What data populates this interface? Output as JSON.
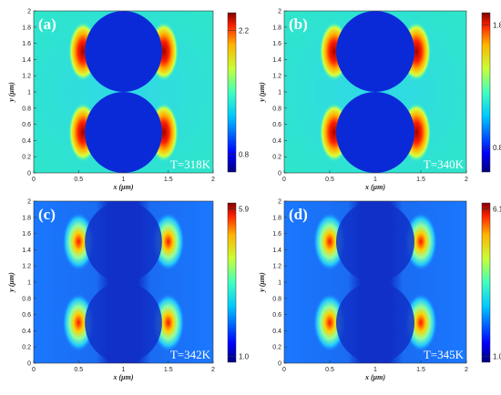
{
  "chart_data": [
    {
      "type": "heatmap",
      "panel_label": "(a)",
      "annotation": "T=318K",
      "xlabel": "x (μm)",
      "ylabel": "y (μm)",
      "xlim": [
        0,
        2
      ],
      "ylim": [
        0,
        2
      ],
      "xticks": [
        "0",
        "0.5",
        "1",
        "1.5",
        "2"
      ],
      "yticks": [
        "0",
        "0.2",
        "0.4",
        "0.6",
        "0.8",
        "1",
        "1.2",
        "1.4",
        "1.6",
        "1.8",
        "2"
      ],
      "colorbar_ticks": [
        "2.2",
        "0.8"
      ],
      "colorbar_range": [
        0.6,
        2.4
      ],
      "spheres": [
        {
          "cx": 1.0,
          "cy": 0.5,
          "r": 0.5
        },
        {
          "cx": 1.0,
          "cy": 1.5,
          "r": 0.5
        }
      ],
      "hot_zones": [
        {
          "cx": 0.55,
          "cy": 1.5
        },
        {
          "cx": 1.45,
          "cy": 1.5
        },
        {
          "cx": 0.55,
          "cy": 0.5
        },
        {
          "cx": 1.45,
          "cy": 0.5
        }
      ]
    },
    {
      "type": "heatmap",
      "panel_label": "(b)",
      "annotation": "T=340K",
      "xlabel": "x (μm)",
      "ylabel": "y (μm)",
      "xlim": [
        0,
        2
      ],
      "ylim": [
        0,
        2
      ],
      "xticks": [
        "0",
        "0.5",
        "1",
        "1.5",
        "2"
      ],
      "yticks": [
        "0",
        "0.2",
        "0.4",
        "0.6",
        "0.8",
        "1",
        "1.2",
        "1.4",
        "1.6",
        "1.8",
        "2"
      ],
      "colorbar_ticks": [
        "1.8",
        "0.8"
      ],
      "colorbar_range": [
        0.6,
        1.9
      ],
      "spheres": [
        {
          "cx": 1.0,
          "cy": 0.5,
          "r": 0.5
        },
        {
          "cx": 1.0,
          "cy": 1.5,
          "r": 0.5
        }
      ],
      "hot_zones": [
        {
          "cx": 0.55,
          "cy": 1.5
        },
        {
          "cx": 1.45,
          "cy": 1.5
        },
        {
          "cx": 0.55,
          "cy": 0.5
        },
        {
          "cx": 1.45,
          "cy": 0.5
        }
      ]
    },
    {
      "type": "heatmap",
      "panel_label": "(c)",
      "annotation": "T=342K",
      "xlabel": "x (μm)",
      "ylabel": "y (μm)",
      "xlim": [
        0,
        2
      ],
      "ylim": [
        0,
        2
      ],
      "xticks": [
        "0",
        "0.5",
        "1",
        "1.5",
        "2"
      ],
      "yticks": [
        "0",
        "0.2",
        "0.4",
        "0.6",
        "0.8",
        "1",
        "1.2",
        "1.4",
        "1.6",
        "1.8",
        "2"
      ],
      "colorbar_ticks": [
        "5.9",
        "1.0"
      ],
      "colorbar_range": [
        0.8,
        6.1
      ],
      "spheres": [
        {
          "cx": 1.0,
          "cy": 0.5,
          "r": 0.5
        },
        {
          "cx": 1.0,
          "cy": 1.5,
          "r": 0.5
        }
      ],
      "hot_zones": [
        {
          "cx": 0.5,
          "cy": 1.5
        },
        {
          "cx": 1.5,
          "cy": 1.5
        },
        {
          "cx": 0.5,
          "cy": 0.5
        },
        {
          "cx": 1.5,
          "cy": 0.5
        }
      ]
    },
    {
      "type": "heatmap",
      "panel_label": "(d)",
      "annotation": "T=345K",
      "xlabel": "x (μm)",
      "ylabel": "y (μm)",
      "xlim": [
        0,
        2
      ],
      "ylim": [
        0,
        2
      ],
      "xticks": [
        "0",
        "0.5",
        "1",
        "1.5",
        "2"
      ],
      "yticks": [
        "0",
        "0.2",
        "0.4",
        "0.6",
        "0.8",
        "1",
        "1.2",
        "1.4",
        "1.6",
        "1.8",
        "2"
      ],
      "colorbar_ticks": [
        "6.1",
        "1.0"
      ],
      "colorbar_range": [
        0.8,
        6.3
      ],
      "spheres": [
        {
          "cx": 1.0,
          "cy": 0.5,
          "r": 0.5
        },
        {
          "cx": 1.0,
          "cy": 1.5,
          "r": 0.5
        }
      ],
      "hot_zones": [
        {
          "cx": 0.5,
          "cy": 1.5
        },
        {
          "cx": 1.5,
          "cy": 1.5
        },
        {
          "cx": 0.5,
          "cy": 0.5
        },
        {
          "cx": 1.5,
          "cy": 0.5
        }
      ]
    }
  ]
}
